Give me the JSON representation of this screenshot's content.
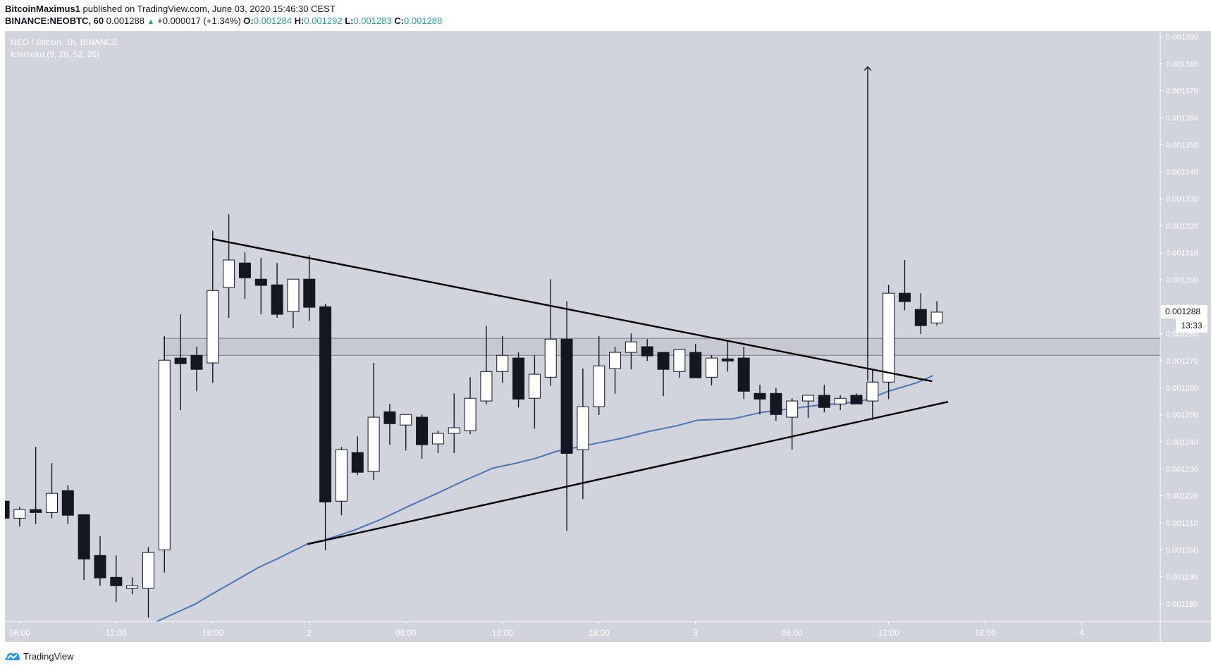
{
  "header": {
    "author": "BitcoinMaximus1",
    "published_text": "published on TradingView.com, June 03, 2020 15:46:30 CEST",
    "symbol": "BINANCE:NEOBTC, 60",
    "last": "0.001288",
    "change": "+0.000017 (+1.34%)",
    "o_label": "O:",
    "o": "0.001284",
    "h_label": "H:",
    "h": "0.001292",
    "l_label": "L:",
    "l": "0.001283",
    "c_label": "C:",
    "c": "0.001288"
  },
  "legend": {
    "title": "NEO / Bitcoin, 1h, BINANCE",
    "indicator": "Ichimoku (9, 26, 52, 26)"
  },
  "price_label": {
    "value": "0.001288",
    "countdown": "13:33"
  },
  "footer": {
    "brand": "TradingView"
  },
  "colors": {
    "background": "#d1d4dc",
    "bull_body": "#ffffff",
    "bear_body": "#131722",
    "wick": "#131722",
    "ichimoku": "#4a76b8",
    "axis_text": "#ffffff",
    "accent": "#26a69a"
  },
  "chart_data": {
    "type": "candlestick",
    "title": "NEO / Bitcoin, 1h, BINANCE",
    "xlabel": "",
    "ylabel": "",
    "ylim": [
      0.001166,
      0.001393
    ],
    "y_ticks": [
      "0.001390",
      "0.001380",
      "0.001370",
      "0.001360",
      "0.001350",
      "0.001340",
      "0.001330",
      "0.001320",
      "0.001310",
      "0.001300",
      "0.001290",
      "0.001280",
      "0.001270",
      "0.001260",
      "0.001250",
      "0.001240",
      "0.001230",
      "0.001220",
      "0.001210",
      "0.001200",
      "0.001190",
      "0.001180"
    ],
    "x_ticks": [
      {
        "label": "06:00",
        "index": 2
      },
      {
        "label": "12:00",
        "index": 8
      },
      {
        "label": "18:00",
        "index": 14
      },
      {
        "label": "2",
        "index": 20
      },
      {
        "label": "06:00",
        "index": 26
      },
      {
        "label": "12:00",
        "index": 32
      },
      {
        "label": "18:00",
        "index": 38
      },
      {
        "label": "3",
        "index": 44
      },
      {
        "label": "06:00",
        "index": 50
      },
      {
        "label": "12:00",
        "index": 56
      },
      {
        "label": "18:00",
        "index": 62
      },
      {
        "label": "4",
        "index": 68
      }
    ],
    "grid": false,
    "legend_position": "top-left",
    "candles_ohlc": [
      [
        0.001218,
        0.001218,
        0.0012117,
        0.0012117
      ],
      [
        0.0012117,
        0.0012159,
        0.0012086,
        0.0012149
      ],
      [
        0.0012149,
        0.0012381,
        0.0012096,
        0.0012138
      ],
      [
        0.0012138,
        0.0012321,
        0.0012117,
        0.0012209
      ],
      [
        0.0012219,
        0.001224,
        0.0012096,
        0.0012128
      ],
      [
        0.001213,
        0.001213,
        0.0011888,
        0.0011966
      ],
      [
        0.0011979,
        0.001205,
        0.0011867,
        0.0011896
      ],
      [
        0.0011898,
        0.0011979,
        0.0011807,
        0.0011867
      ],
      [
        0.0011857,
        0.0011898,
        0.0011836,
        0.0011867
      ],
      [
        0.0011857,
        0.001201,
        0.0011749,
        0.001199
      ],
      [
        0.0012,
        0.0012791,
        0.0011916,
        0.0012702
      ],
      [
        0.001271,
        0.0012872,
        0.0012517,
        0.0012689
      ],
      [
        0.001272,
        0.0012752,
        0.0012587,
        0.0012668
      ],
      [
        0.0012692,
        0.0013182,
        0.0012618,
        0.001296
      ],
      [
        0.0012971,
        0.0013242,
        0.0012859,
        0.0013073
      ],
      [
        0.0013062,
        0.0013101,
        0.0012929,
        0.0013007
      ],
      [
        0.0013002,
        0.001308,
        0.0012872,
        0.0012979
      ],
      [
        0.0012981,
        0.0013062,
        0.0012859,
        0.0012872
      ],
      [
        0.0012882,
        0.0013002,
        0.001282,
        0.0013002
      ],
      [
        0.0013002,
        0.0013091,
        0.0012848,
        0.0012898
      ],
      [
        0.00129,
        0.0012911,
        0.0011999,
        0.0012177
      ],
      [
        0.001218,
        0.0012381,
        0.0012128,
        0.0012371
      ],
      [
        0.001236,
        0.001242,
        0.0012277,
        0.0012287
      ],
      [
        0.001229,
        0.0012692,
        0.0012258,
        0.0012491
      ],
      [
        0.0012511,
        0.001254,
        0.0012389,
        0.0012467
      ],
      [
        0.0012462,
        0.0012501,
        0.0012368,
        0.0012501
      ],
      [
        0.0012491,
        0.0012501,
        0.0012337,
        0.0012389
      ],
      [
        0.0012392,
        0.0012441,
        0.0012358,
        0.0012431
      ],
      [
        0.0012431,
        0.0012579,
        0.0012358,
        0.0012452
      ],
      [
        0.0012441,
        0.0012639,
        0.0012428,
        0.0012561
      ],
      [
        0.0012551,
        0.001283,
        0.0012538,
        0.001266
      ],
      [
        0.001266,
        0.0012791,
        0.0012618,
        0.001272
      ],
      [
        0.001271,
        0.0012731,
        0.0012527,
        0.0012558
      ],
      [
        0.0012561,
        0.001272,
        0.0012449,
        0.001265
      ],
      [
        0.0012639,
        0.0013002,
        0.0012608,
        0.001278
      ],
      [
        0.001278,
        0.0012921,
        0.001207,
        0.0012357
      ],
      [
        0.0012371,
        0.0012671,
        0.0012188,
        0.001253
      ],
      [
        0.001253,
        0.0012791,
        0.0012499,
        0.0012681
      ],
      [
        0.0012671,
        0.0012752,
        0.0012577,
        0.0012731
      ],
      [
        0.0012731,
        0.0012801,
        0.0012668,
        0.001277
      ],
      [
        0.0012752,
        0.001278,
        0.0012699,
        0.0012718
      ],
      [
        0.0012731,
        0.0012731,
        0.0012569,
        0.0012668
      ],
      [
        0.001266,
        0.0012741,
        0.0012637,
        0.0012741
      ],
      [
        0.0012731,
        0.0012762,
        0.0012637,
        0.0012637
      ],
      [
        0.0012639,
        0.001272,
        0.0012608,
        0.001271
      ],
      [
        0.0012707,
        0.001277,
        0.001266,
        0.0012699
      ],
      [
        0.001271,
        0.0012752,
        0.0012558,
        0.0012587
      ],
      [
        0.0012579,
        0.0012611,
        0.0012501,
        0.0012558
      ],
      [
        0.0012579,
        0.00126,
        0.0012478,
        0.0012501
      ],
      [
        0.0012491,
        0.0012561,
        0.0012371,
        0.0012551
      ],
      [
        0.0012551,
        0.0012572,
        0.0012488,
        0.0012572
      ],
      [
        0.0012572,
        0.0012611,
        0.0012509,
        0.0012527
      ],
      [
        0.001254,
        0.0012572,
        0.0012517,
        0.0012561
      ],
      [
        0.0012572,
        0.0012579,
        0.001254,
        0.001254
      ],
      [
        0.0012551,
        0.0012666,
        0.001248,
        0.0012621
      ],
      [
        0.0012621,
        0.0012981,
        0.0012558,
        0.001295
      ],
      [
        0.001295,
        0.0013073,
        0.0012887,
        0.0012919
      ],
      [
        0.001289,
        0.001295,
        0.0012799,
        0.001283
      ],
      [
        0.001284,
        0.0012921,
        0.001283,
        0.001288
      ]
    ],
    "series": [
      {
        "name": "Ichimoku base line",
        "points": [
          [
            10.5,
            0.0011734
          ],
          [
            12.91,
            0.0011799
          ],
          [
            13.92,
            0.0011835
          ],
          [
            16.86,
            0.0011935
          ],
          [
            17.99,
            0.0011966
          ],
          [
            19.92,
            0.0012023
          ],
          [
            20.93,
            0.0012036
          ],
          [
            22.81,
            0.0012073
          ],
          [
            24.43,
            0.0012112
          ],
          [
            26.19,
            0.0012162
          ],
          [
            27.94,
            0.0012209
          ],
          [
            29.69,
            0.0012258
          ],
          [
            31.44,
            0.0012303
          ],
          [
            32.89,
            0.0012321
          ],
          [
            34.07,
            0.0012339
          ],
          [
            35.38,
            0.0012365
          ],
          [
            37.14,
            0.0012386
          ],
          [
            39.33,
            0.0012412
          ],
          [
            41.08,
            0.0012438
          ],
          [
            42.83,
            0.0012459
          ],
          [
            44.14,
            0.001248
          ],
          [
            46.33,
            0.0012485
          ],
          [
            48.09,
            0.0012509
          ],
          [
            49.84,
            0.0012522
          ],
          [
            51.59,
            0.0012535
          ],
          [
            53.34,
            0.0012543
          ],
          [
            54.66,
            0.0012556
          ],
          [
            55.97,
            0.0012587
          ],
          [
            57.72,
            0.0012618
          ],
          [
            58.77,
            0.0012645
          ]
        ]
      }
    ],
    "annotations": {
      "resistance_line": [
        [
          13.97,
          0.0013151
        ],
        [
          58.7,
          0.0012624
        ]
      ],
      "support_line": [
        [
          19.9,
          0.0012021
        ],
        [
          59.7,
          0.0012548
        ]
      ],
      "horizontal_band": {
        "start_index": 10.9,
        "upper": 0.0012783,
        "lower": 0.001272
      },
      "arrow": {
        "index": 54.7,
        "from": 0.0012626,
        "to": 0.0013788
      }
    }
  }
}
